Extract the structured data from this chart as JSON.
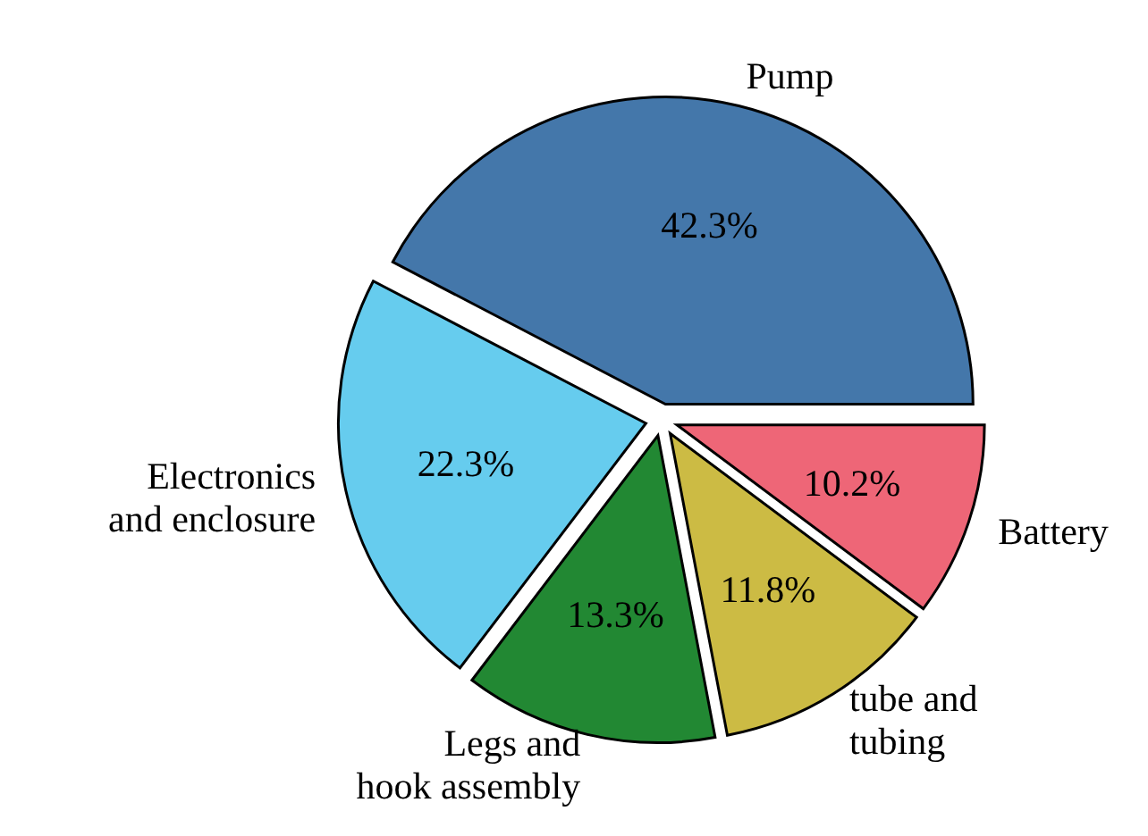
{
  "chart_data": {
    "type": "pie",
    "categories": [
      "Pump",
      "Electronics and enclosure",
      "Legs and hook assembly",
      "tube and tubing",
      "Battery"
    ],
    "values": [
      42.3,
      22.3,
      13.3,
      11.8,
      10.2
    ],
    "value_labels": [
      "42.3%",
      "22.3%",
      "13.3%",
      "11.8%",
      "10.2%"
    ],
    "colors": [
      "#4477aa",
      "#66ccee",
      "#228833",
      "#ccbb44",
      "#ee6677"
    ],
    "legend": false
  }
}
